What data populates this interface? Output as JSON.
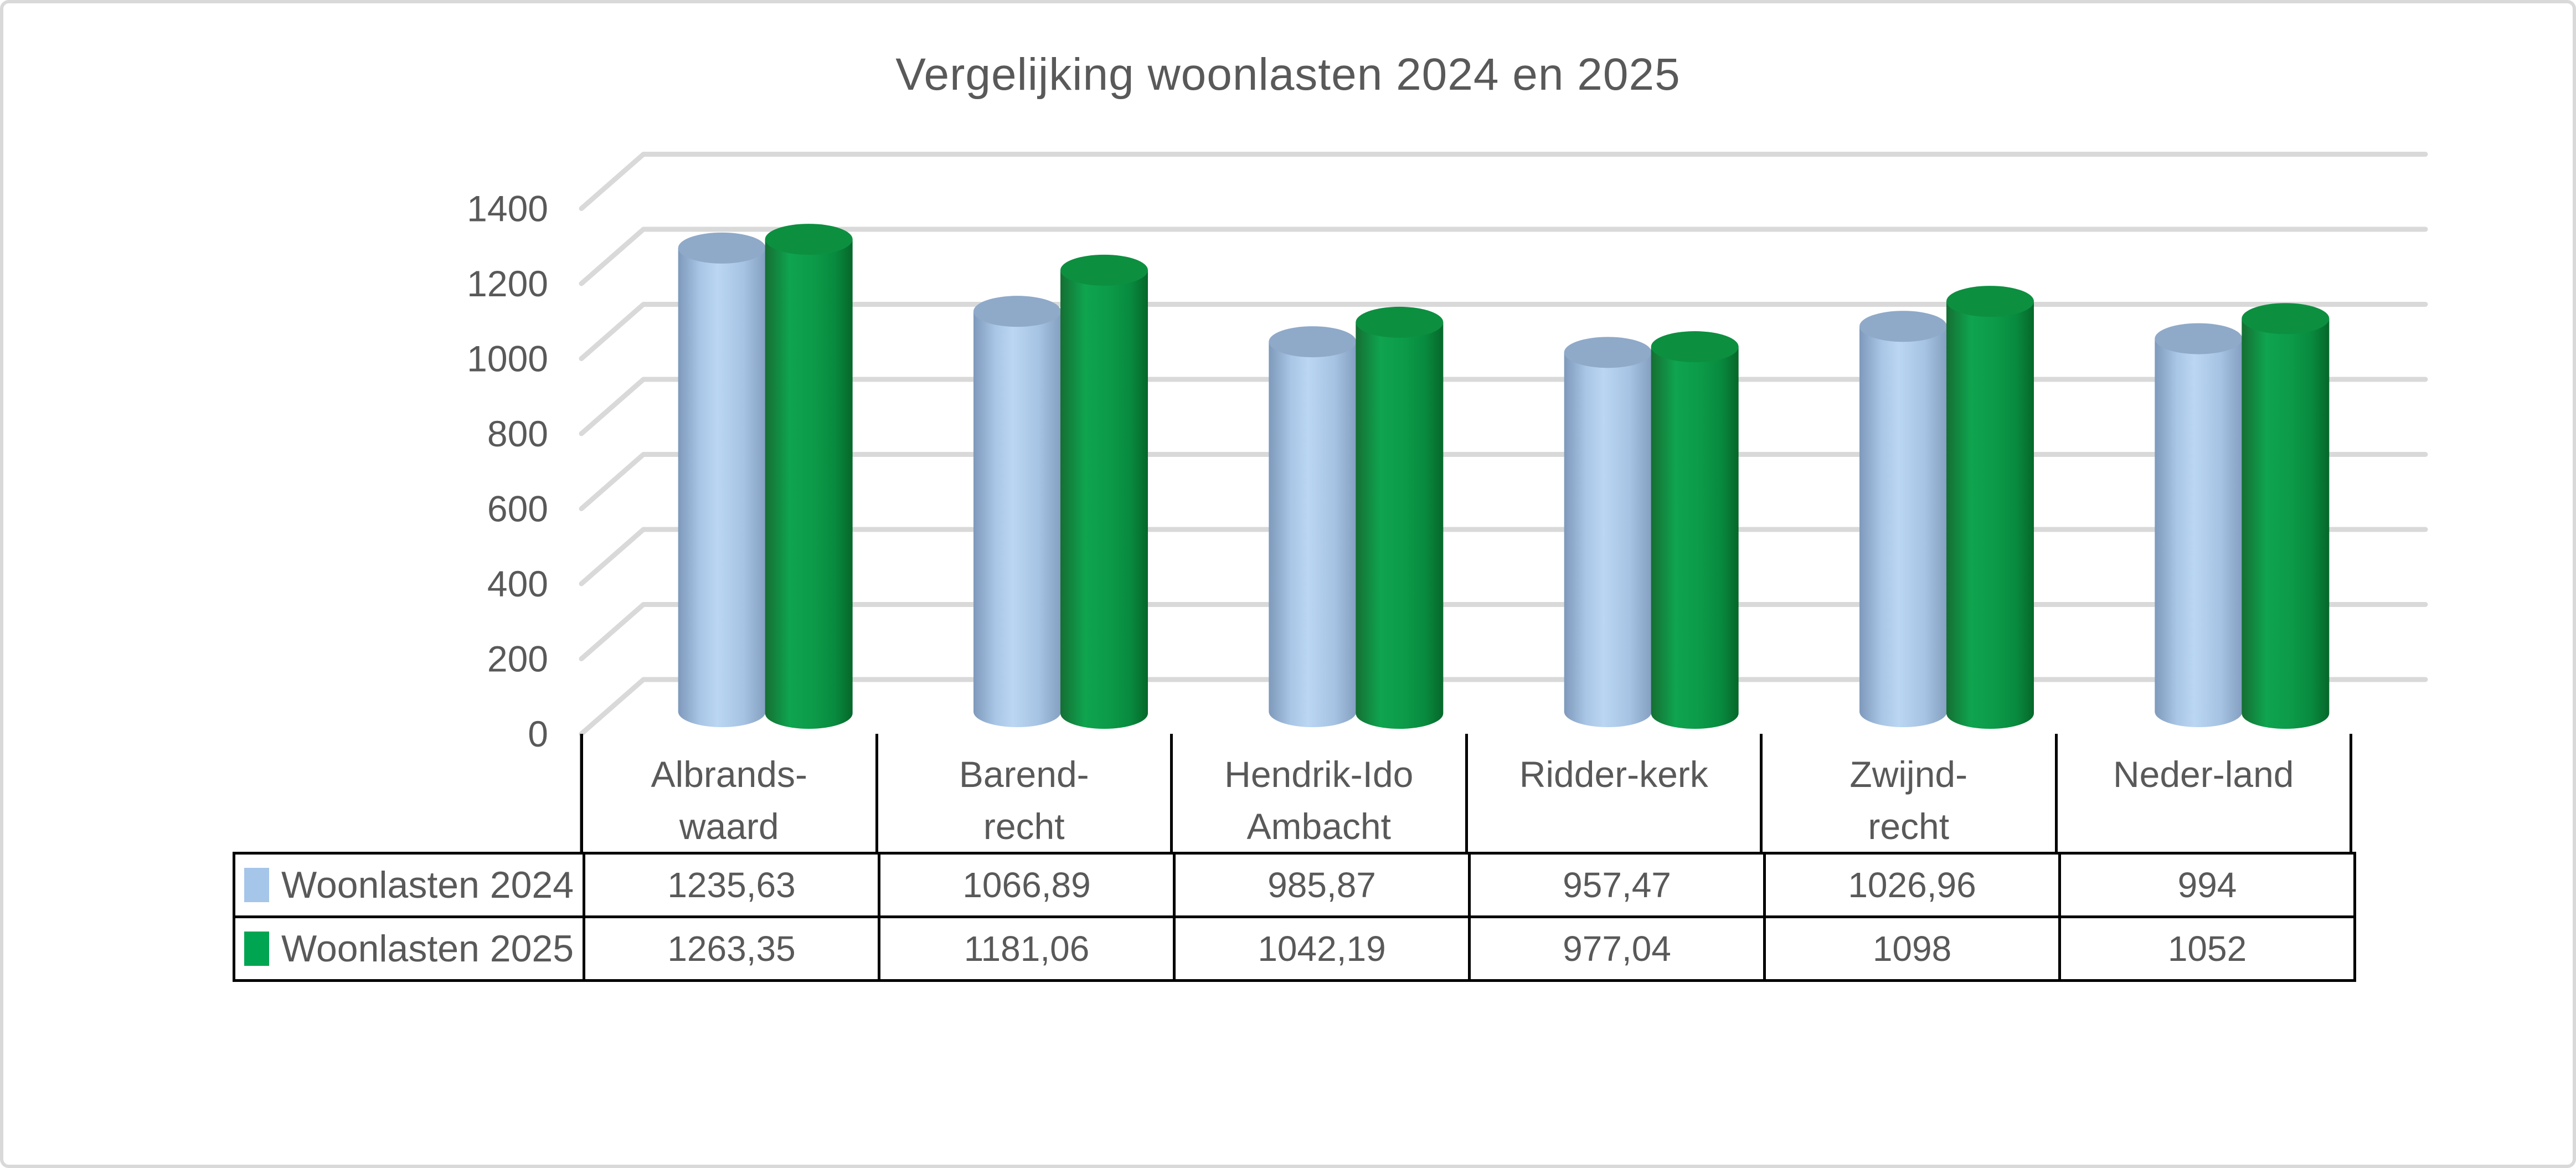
{
  "title": "Vergelijking woonlasten 2024 en 2025",
  "colors": {
    "text": "#595959",
    "grid": "#d9d9d9",
    "axis_tick": "#000000",
    "table_border": "#000000",
    "page_border": "#d9d9d9",
    "swatch_2024": "#a5c5e9",
    "swatch_2025": "#00a551",
    "cyl_blue_stops": [
      "#7e99bb",
      "#a9c6e6",
      "#bad6f2",
      "#a6c3e3",
      "#849fc1"
    ],
    "cyl_blue_top": "#8fa9c9",
    "cyl_green_stops": [
      "#156f33",
      "#0fa44f",
      "#0c9b49",
      "#088a3e",
      "#06672a"
    ],
    "cyl_green_top": "#0d8f40"
  },
  "chart_data": {
    "type": "bar",
    "subtype": "3d-cylinder",
    "title": "Vergelijking woonlasten 2024 en 2025",
    "categories": [
      "Albrands-waard",
      "Barend-recht",
      "Hendrik-Ido Ambacht",
      "Ridder-kerk",
      "Zwijnd-recht",
      "Neder-land"
    ],
    "category_lines": [
      [
        "Albrands-",
        "waard"
      ],
      [
        "Barend-",
        "recht"
      ],
      [
        "Hendrik-Ido",
        "Ambacht"
      ],
      [
        "Ridder-kerk"
      ],
      [
        "Zwijnd-",
        "recht"
      ],
      [
        "Neder-land"
      ]
    ],
    "series": [
      {
        "name": "Woonlasten 2024",
        "color": "#a5c5e9",
        "values": [
          1235.63,
          1066.89,
          985.87,
          957.47,
          1026.96,
          994
        ],
        "display": [
          "1235,63",
          "1066,89",
          "985,87",
          "957,47",
          "1026,96",
          "994"
        ]
      },
      {
        "name": "Woonlasten 2025",
        "color": "#00a551",
        "values": [
          1263.35,
          1181.06,
          1042.19,
          977.04,
          1098,
          1052
        ],
        "display": [
          "1263,35",
          "1181,06",
          "1042,19",
          "977,04",
          "1098",
          "1052"
        ]
      }
    ],
    "xlabel": "",
    "ylabel": "",
    "ylim": [
      0,
      1400
    ],
    "y_ticks": [
      0,
      200,
      400,
      600,
      800,
      1000,
      1200,
      1400
    ],
    "grid": true,
    "legend_position": "table-left"
  }
}
